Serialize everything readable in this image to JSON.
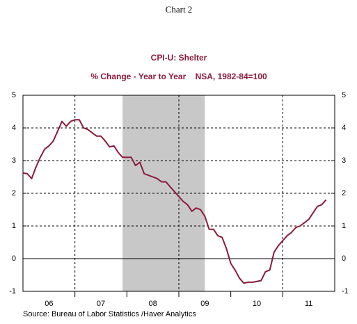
{
  "chart_data": {
    "type": "line",
    "header": "Chart 2",
    "title": "CPI-U: Shelter",
    "subtitle": "% Change - Year to Year    NSA, 1982-84=100",
    "source": "Source:  Bureau of Labor Statistics /Haver Analytics",
    "x": [
      2006,
      2006.083,
      2006.167,
      2006.25,
      2006.333,
      2006.417,
      2006.5,
      2006.583,
      2006.667,
      2006.75,
      2006.833,
      2006.917,
      2007,
      2007.083,
      2007.167,
      2007.25,
      2007.333,
      2007.417,
      2007.5,
      2007.583,
      2007.667,
      2007.75,
      2007.833,
      2007.917,
      2008,
      2008.083,
      2008.167,
      2008.25,
      2008.333,
      2008.417,
      2008.5,
      2008.583,
      2008.667,
      2008.75,
      2008.833,
      2008.917,
      2009,
      2009.083,
      2009.167,
      2009.25,
      2009.333,
      2009.417,
      2009.5,
      2009.583,
      2009.667,
      2009.75,
      2009.833,
      2009.917,
      2010,
      2010.083,
      2010.167,
      2010.25,
      2010.333,
      2010.417,
      2010.5,
      2010.583,
      2010.667,
      2010.75,
      2010.833,
      2010.917,
      2011,
      2011.083,
      2011.167,
      2011.25,
      2011.333,
      2011.417,
      2011.5,
      2011.583,
      2011.667,
      2011.75,
      2011.833
    ],
    "series": [
      {
        "color": "#8b1a3a",
        "values": [
          2.62,
          2.6,
          2.45,
          2.8,
          3.1,
          3.35,
          3.45,
          3.6,
          3.9,
          4.2,
          4.05,
          4.2,
          4.25,
          4.25,
          4.0,
          3.95,
          3.85,
          3.75,
          3.75,
          3.6,
          3.42,
          3.45,
          3.25,
          3.1,
          3.1,
          3.1,
          2.85,
          2.95,
          2.6,
          2.55,
          2.5,
          2.45,
          2.35,
          2.35,
          2.2,
          2.05,
          1.9,
          1.75,
          1.65,
          1.45,
          1.55,
          1.5,
          1.3,
          0.9,
          0.9,
          0.7,
          0.65,
          0.3,
          -0.15,
          -0.35,
          -0.6,
          -0.75,
          -0.72,
          -0.72,
          -0.7,
          -0.67,
          -0.4,
          -0.35,
          0.2,
          0.4,
          0.55,
          0.7,
          0.8,
          0.95,
          1.0,
          1.1,
          1.2,
          1.4,
          1.6,
          1.65,
          1.8
        ]
      }
    ],
    "xlim": [
      2006,
      2012
    ],
    "xticks": [
      {
        "value": 2006.5,
        "label": "06"
      },
      {
        "value": 2007.5,
        "label": "07"
      },
      {
        "value": 2008.5,
        "label": "08"
      },
      {
        "value": 2009.5,
        "label": "09"
      },
      {
        "value": 2010.5,
        "label": "10"
      },
      {
        "value": 2011.5,
        "label": "11"
      }
    ],
    "xminorticks": [
      2007,
      2008,
      2009,
      2010,
      2011
    ],
    "xgrid": [
      2007,
      2009,
      2011
    ],
    "shaded": [
      2007.917,
      2009.5
    ],
    "ylim": [
      -1,
      5
    ],
    "yticks": [
      -1,
      0,
      1,
      2,
      3,
      4,
      5
    ],
    "grid": true
  }
}
